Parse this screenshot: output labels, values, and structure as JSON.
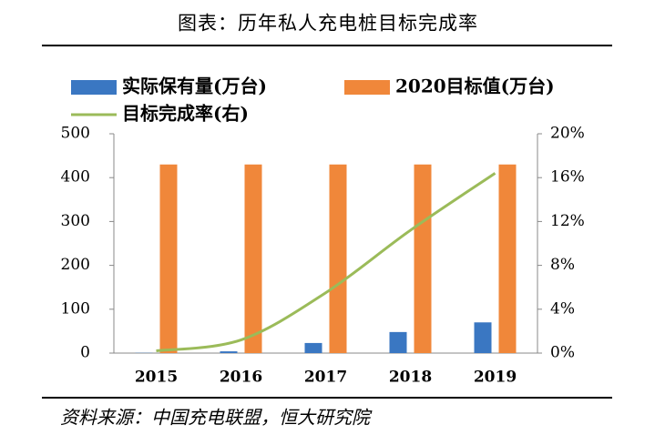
{
  "chart_data": {
    "type": "bar",
    "title": "图表：历年私人充电桩目标完成率",
    "source": "资料来源：中国充电联盟，恒大研究院",
    "categories": [
      "2015",
      "2016",
      "2017",
      "2018",
      "2019"
    ],
    "series": [
      {
        "name": "实际保有量(万台)",
        "color": "#3a77c2",
        "values": [
          0.5,
          4,
          23,
          48,
          70
        ]
      },
      {
        "name": "2020目标值(万台)",
        "color": "#f0873a",
        "values": [
          430,
          430,
          430,
          430,
          430
        ]
      },
      {
        "name": "目标完成率(右)",
        "color": "#9bbb59",
        "type": "line",
        "axis": "y2",
        "values": [
          0.2,
          1.2,
          5.5,
          11.2,
          16.4
        ]
      }
    ],
    "ylim": [
      0,
      500
    ],
    "yticks": [
      0,
      100,
      200,
      300,
      400,
      500
    ],
    "y2lim": [
      0,
      20
    ],
    "y2ticks": [
      {
        "value": 0,
        "label": "0%"
      },
      {
        "value": 4,
        "label": "4%"
      },
      {
        "value": 8,
        "label": "8%"
      },
      {
        "value": 12,
        "label": "12%"
      },
      {
        "value": 16,
        "label": "16%"
      },
      {
        "value": 20,
        "label": "20%"
      }
    ],
    "grid": false
  }
}
